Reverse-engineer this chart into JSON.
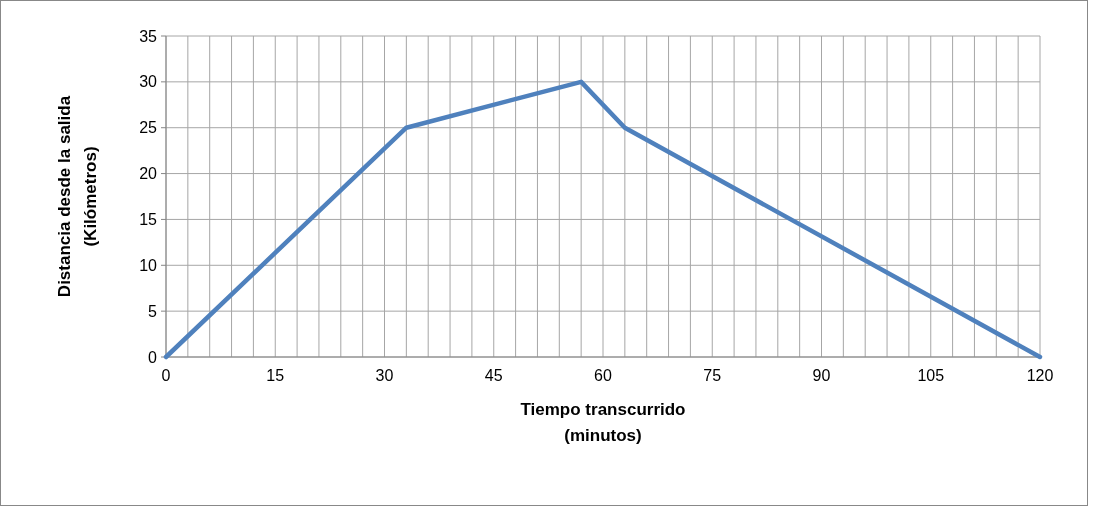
{
  "chart_data": {
    "type": "line",
    "xlabel": "Tiempo transcurrido\n(minutos)",
    "ylabel": "Distancia desde la salida\n(Kilómetros)",
    "x": [
      0,
      33,
      57,
      63,
      120
    ],
    "series": [
      {
        "color": "#4f81bd",
        "values": [
          0,
          25,
          30,
          25,
          0
        ]
      }
    ],
    "xlim": [
      0,
      120
    ],
    "xticks": [
      0,
      {
        "value": 3,
        "label": null
      },
      {
        "value": 6,
        "label": null
      },
      {
        "value": 9,
        "label": null
      },
      {
        "value": 12,
        "label": null
      },
      15,
      {
        "value": 18,
        "label": null
      },
      {
        "value": 21,
        "label": null
      },
      {
        "value": 24,
        "label": null
      },
      {
        "value": 27,
        "label": null
      },
      30,
      {
        "value": 33,
        "label": null
      },
      {
        "value": 36,
        "label": null
      },
      {
        "value": 39,
        "label": null
      },
      {
        "value": 42,
        "label": null
      },
      45,
      {
        "value": 48,
        "label": null
      },
      {
        "value": 51,
        "label": null
      },
      {
        "value": 54,
        "label": null
      },
      {
        "value": 57,
        "label": null
      },
      60,
      {
        "value": 63,
        "label": null
      },
      {
        "value": 66,
        "label": null
      },
      {
        "value": 69,
        "label": null
      },
      {
        "value": 72,
        "label": null
      },
      75,
      {
        "value": 78,
        "label": null
      },
      {
        "value": 81,
        "label": null
      },
      {
        "value": 84,
        "label": null
      },
      {
        "value": 87,
        "label": null
      },
      90,
      {
        "value": 93,
        "label": null
      },
      {
        "value": 96,
        "label": null
      },
      {
        "value": 99,
        "label": null
      },
      {
        "value": 102,
        "label": null
      },
      105,
      {
        "value": 108,
        "label": null
      },
      {
        "value": 111,
        "label": null
      },
      {
        "value": 114,
        "label": null
      },
      {
        "value": 117,
        "label": null
      },
      120
    ],
    "ylim": [
      0,
      35
    ],
    "yticks": [
      0,
      5,
      10,
      15,
      20,
      25,
      30,
      35
    ],
    "grid": true,
    "marker": "none",
    "line_style": "solid"
  }
}
